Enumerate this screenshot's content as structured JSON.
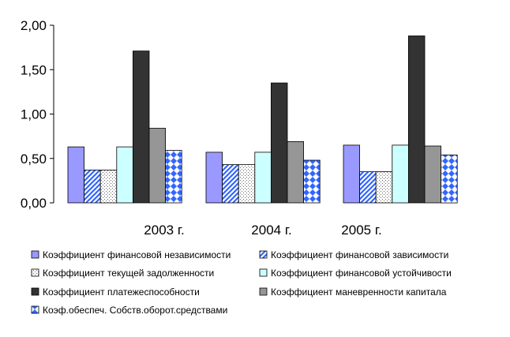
{
  "chart_data": {
    "type": "bar",
    "categories": [
      "2003 г.",
      "2004 г.",
      "2005 г."
    ],
    "ylim": [
      0,
      2.0
    ],
    "yticks": [
      "0,00",
      "0,50",
      "1,00",
      "1,50",
      "2,00"
    ],
    "grid": false,
    "legend_position": "bottom",
    "series": [
      {
        "name": "Коэффициент финансовой независимости",
        "values": [
          0.63,
          0.57,
          0.65
        ],
        "color": "#9999ff",
        "pattern": "solid"
      },
      {
        "name": "Коэффициент финансовой зависимости",
        "values": [
          0.37,
          0.43,
          0.35
        ],
        "color": "#3366ff",
        "pattern": "diagonal"
      },
      {
        "name": "Коэффициент текущей задолженности",
        "values": [
          0.37,
          0.43,
          0.35
        ],
        "color": "#ffffff",
        "pattern": "dots"
      },
      {
        "name": "Коэффициент финансовой устойчивости",
        "values": [
          0.63,
          0.57,
          0.65
        ],
        "color": "#ccffff",
        "pattern": "solid"
      },
      {
        "name": "Коэффициент платежеспособности",
        "values": [
          1.71,
          1.35,
          1.88
        ],
        "color": "#333333",
        "pattern": "solid"
      },
      {
        "name": "Коэффициент маневренности капитала",
        "values": [
          0.84,
          0.69,
          0.64
        ],
        "color": "#969696",
        "pattern": "solid"
      },
      {
        "name": "Коэф.обеспеч. Собств.оборот.средствами",
        "values": [
          0.59,
          0.48,
          0.54
        ],
        "color": "#3366ff",
        "pattern": "checker"
      }
    ]
  }
}
